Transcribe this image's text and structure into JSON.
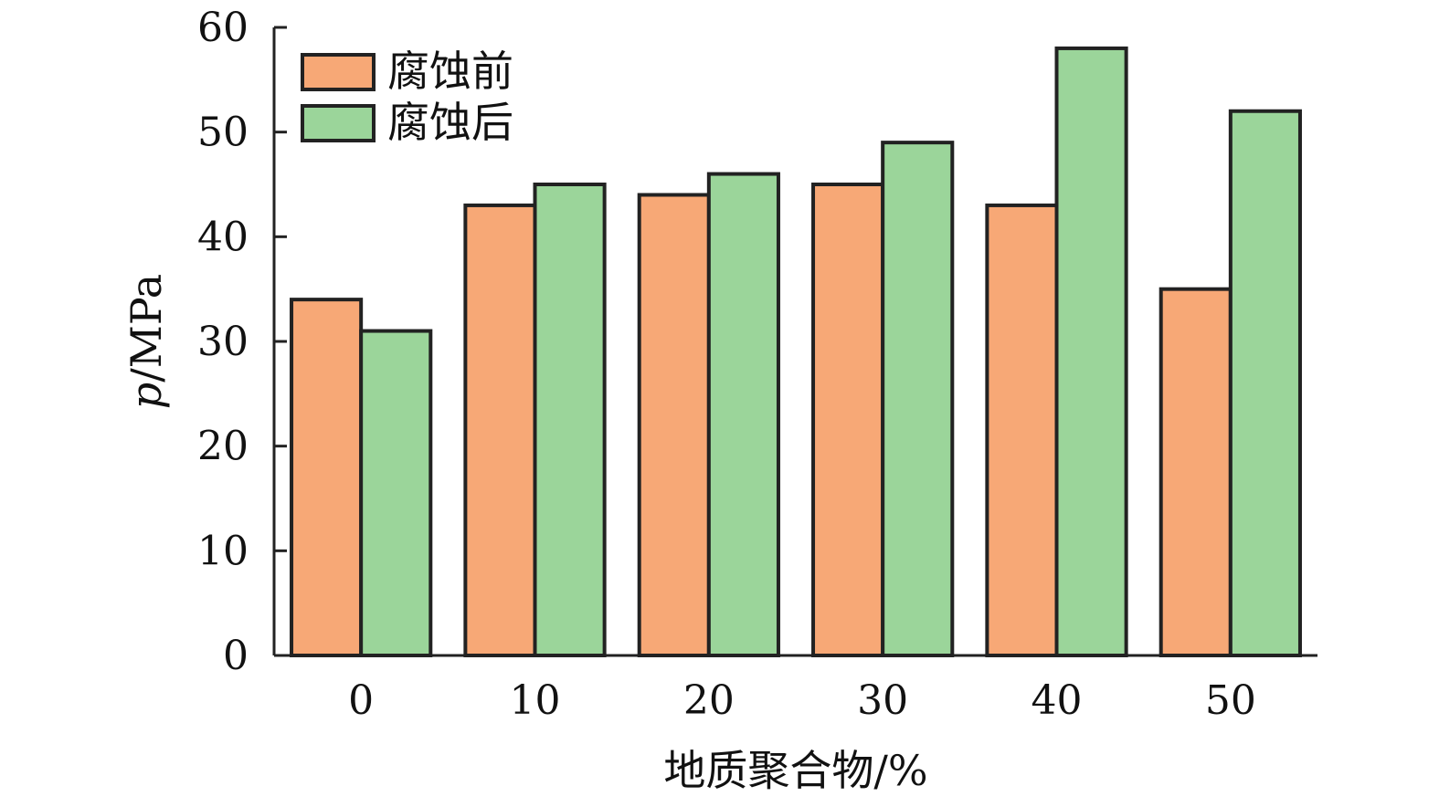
{
  "chart_data": {
    "type": "bar",
    "categories": [
      "0",
      "10",
      "20",
      "30",
      "40",
      "50"
    ],
    "series": [
      {
        "name": "腐蚀前",
        "values": [
          34,
          43,
          44,
          45,
          43,
          35
        ],
        "color": "#F7A876",
        "stroke": "#222222"
      },
      {
        "name": "腐蚀后",
        "values": [
          31,
          45,
          46,
          49,
          58,
          52
        ],
        "color": "#9BD59A",
        "stroke": "#222222"
      }
    ],
    "xlabel": "地质聚合物/%",
    "ylabel_var": "p",
    "ylabel_unit": "/MPa",
    "ylim": [
      0,
      60
    ],
    "yticks": [
      0,
      10,
      20,
      30,
      40,
      50,
      60
    ],
    "grid": false,
    "legend_position": "top-left"
  }
}
